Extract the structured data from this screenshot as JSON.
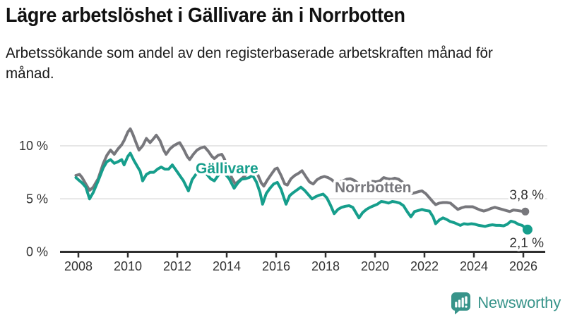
{
  "header": {
    "title": "Lägre arbetslöshet i Gällivare än i Norrbotten",
    "subtitle": "Arbetssökande som andel av den registerbaserade arbetskraften månad för månad."
  },
  "footer": {
    "brand": "Newsworthy",
    "logo_icon": "bar-chart-speech-bubble-icon",
    "brand_color": "#38948a"
  },
  "colors": {
    "gallivare": "#169e8c",
    "norrbotten": "#77777c",
    "gridline": "#dedede",
    "axis": "#2f2f2f",
    "tick_label": "#333333",
    "end_label": "#333333"
  },
  "chart_data": {
    "type": "line",
    "title": "Lägre arbetslöshet i Gällivare än i Norrbotten",
    "xlabel": "",
    "ylabel": "",
    "grid": "horizontal",
    "legend_position": "inline-labels",
    "xlim": [
      2007.75,
      2026.6
    ],
    "ylim": [
      0,
      12.2
    ],
    "x_axis": {
      "ticks": [
        2008,
        2010,
        2012,
        2014,
        2016,
        2018,
        2020,
        2022,
        2024,
        2026
      ]
    },
    "y_axis": {
      "ticks": [
        {
          "value": 0,
          "label": "0 %"
        },
        {
          "value": 5,
          "label": "5 %"
        },
        {
          "value": 10,
          "label": "10 %"
        }
      ]
    },
    "series": [
      {
        "name": "Norrbotten",
        "color": "#77777c",
        "end_label": "3,8 %",
        "end_value": 3.8,
        "points": [
          [
            2007.9,
            7.2
          ],
          [
            2008.05,
            7.3
          ],
          [
            2008.15,
            7.0
          ],
          [
            2008.3,
            6.4
          ],
          [
            2008.45,
            5.8
          ],
          [
            2008.6,
            6.1
          ],
          [
            2008.8,
            6.9
          ],
          [
            2009.0,
            8.3
          ],
          [
            2009.15,
            9.1
          ],
          [
            2009.3,
            9.6
          ],
          [
            2009.45,
            9.2
          ],
          [
            2009.6,
            9.7
          ],
          [
            2009.75,
            10.1
          ],
          [
            2009.85,
            10.5
          ],
          [
            2010.0,
            11.3
          ],
          [
            2010.1,
            11.6
          ],
          [
            2010.2,
            11.1
          ],
          [
            2010.35,
            10.2
          ],
          [
            2010.45,
            9.6
          ],
          [
            2010.6,
            10.0
          ],
          [
            2010.75,
            10.7
          ],
          [
            2010.9,
            10.3
          ],
          [
            2011.05,
            10.7
          ],
          [
            2011.15,
            11.0
          ],
          [
            2011.3,
            10.5
          ],
          [
            2011.45,
            9.6
          ],
          [
            2011.55,
            9.2
          ],
          [
            2011.7,
            9.7
          ],
          [
            2011.85,
            10.0
          ],
          [
            2012.0,
            10.2
          ],
          [
            2012.1,
            10.3
          ],
          [
            2012.25,
            9.7
          ],
          [
            2012.4,
            9.0
          ],
          [
            2012.5,
            8.7
          ],
          [
            2012.65,
            9.2
          ],
          [
            2012.8,
            9.6
          ],
          [
            2012.95,
            9.8
          ],
          [
            2013.1,
            9.9
          ],
          [
            2013.25,
            9.5
          ],
          [
            2013.4,
            9.0
          ],
          [
            2013.5,
            8.8
          ],
          [
            2013.65,
            9.1
          ],
          [
            2013.8,
            9.2
          ],
          [
            2013.9,
            8.8
          ],
          [
            2014.05,
            7.9
          ],
          [
            2014.2,
            7.0
          ],
          [
            2014.35,
            6.4
          ],
          [
            2014.5,
            6.7
          ],
          [
            2014.65,
            7.0
          ],
          [
            2014.8,
            7.3
          ],
          [
            2014.95,
            7.6
          ],
          [
            2015.1,
            7.75
          ],
          [
            2015.25,
            7.3
          ],
          [
            2015.4,
            6.5
          ],
          [
            2015.5,
            6.2
          ],
          [
            2015.65,
            6.8
          ],
          [
            2015.8,
            7.3
          ],
          [
            2015.95,
            7.8
          ],
          [
            2016.05,
            7.9
          ],
          [
            2016.2,
            7.2
          ],
          [
            2016.35,
            6.4
          ],
          [
            2016.45,
            6.3
          ],
          [
            2016.6,
            6.9
          ],
          [
            2016.75,
            7.2
          ],
          [
            2016.9,
            7.4
          ],
          [
            2017.05,
            7.65
          ],
          [
            2017.2,
            7.1
          ],
          [
            2017.35,
            6.6
          ],
          [
            2017.5,
            6.4
          ],
          [
            2017.65,
            6.8
          ],
          [
            2017.8,
            7.0
          ],
          [
            2017.95,
            7.1
          ],
          [
            2018.1,
            7.0
          ],
          [
            2018.25,
            6.8
          ],
          [
            2018.4,
            6.5
          ],
          [
            2018.55,
            6.6
          ],
          [
            2018.7,
            6.7
          ],
          [
            2018.85,
            6.85
          ],
          [
            2019.0,
            6.9
          ],
          [
            2019.15,
            6.75
          ],
          [
            2019.3,
            6.5
          ],
          [
            2019.45,
            6.35
          ],
          [
            2019.6,
            6.5
          ],
          [
            2019.75,
            6.6
          ],
          [
            2019.9,
            6.65
          ],
          [
            2020.05,
            6.6
          ],
          [
            2020.2,
            6.7
          ],
          [
            2020.35,
            7.0
          ],
          [
            2020.5,
            6.9
          ],
          [
            2020.65,
            6.85
          ],
          [
            2020.8,
            6.95
          ],
          [
            2020.95,
            6.85
          ],
          [
            2021.1,
            6.6
          ],
          [
            2021.25,
            5.9
          ],
          [
            2021.35,
            5.6
          ],
          [
            2021.5,
            5.5
          ],
          [
            2021.65,
            5.6
          ],
          [
            2021.8,
            5.7
          ],
          [
            2021.9,
            5.75
          ],
          [
            2022.05,
            5.5
          ],
          [
            2022.2,
            5.1
          ],
          [
            2022.35,
            4.7
          ],
          [
            2022.45,
            4.45
          ],
          [
            2022.6,
            4.6
          ],
          [
            2022.75,
            4.65
          ],
          [
            2022.9,
            4.65
          ],
          [
            2023.05,
            4.6
          ],
          [
            2023.2,
            4.3
          ],
          [
            2023.35,
            4.0
          ],
          [
            2023.5,
            4.15
          ],
          [
            2023.65,
            4.25
          ],
          [
            2023.8,
            4.25
          ],
          [
            2023.95,
            4.25
          ],
          [
            2024.1,
            4.1
          ],
          [
            2024.25,
            3.95
          ],
          [
            2024.4,
            3.85
          ],
          [
            2024.55,
            3.95
          ],
          [
            2024.7,
            4.1
          ],
          [
            2024.85,
            4.2
          ],
          [
            2025.0,
            4.1
          ],
          [
            2025.15,
            4.0
          ],
          [
            2025.3,
            3.9
          ],
          [
            2025.45,
            3.8
          ],
          [
            2025.6,
            3.95
          ],
          [
            2025.75,
            3.9
          ],
          [
            2025.9,
            3.85
          ],
          [
            2026.08,
            3.8
          ]
        ]
      },
      {
        "name": "Gällivare",
        "color": "#169e8c",
        "end_label": "2,1 %",
        "end_value": 2.1,
        "points": [
          [
            2007.9,
            7.0
          ],
          [
            2008.05,
            6.7
          ],
          [
            2008.15,
            6.5
          ],
          [
            2008.3,
            6.1
          ],
          [
            2008.45,
            5.0
          ],
          [
            2008.6,
            5.6
          ],
          [
            2008.8,
            6.7
          ],
          [
            2009.0,
            7.9
          ],
          [
            2009.15,
            8.5
          ],
          [
            2009.3,
            8.7
          ],
          [
            2009.45,
            8.35
          ],
          [
            2009.6,
            8.5
          ],
          [
            2009.75,
            8.7
          ],
          [
            2009.85,
            8.2
          ],
          [
            2010.0,
            9.0
          ],
          [
            2010.1,
            9.3
          ],
          [
            2010.25,
            8.6
          ],
          [
            2010.4,
            8.0
          ],
          [
            2010.5,
            7.6
          ],
          [
            2010.6,
            6.7
          ],
          [
            2010.75,
            7.3
          ],
          [
            2010.9,
            7.5
          ],
          [
            2011.05,
            7.5
          ],
          [
            2011.2,
            7.8
          ],
          [
            2011.35,
            8.0
          ],
          [
            2011.5,
            7.8
          ],
          [
            2011.65,
            7.8
          ],
          [
            2011.8,
            8.2
          ],
          [
            2011.95,
            7.7
          ],
          [
            2012.1,
            7.2
          ],
          [
            2012.25,
            6.7
          ],
          [
            2012.45,
            5.75
          ],
          [
            2012.6,
            6.8
          ],
          [
            2012.75,
            7.3
          ],
          [
            2012.9,
            7.6
          ],
          [
            2013.05,
            7.9
          ],
          [
            2013.2,
            7.3
          ],
          [
            2013.35,
            6.9
          ],
          [
            2013.5,
            6.7
          ],
          [
            2013.65,
            7.2
          ],
          [
            2013.8,
            7.5
          ],
          [
            2013.95,
            7.3
          ],
          [
            2014.1,
            6.9
          ],
          [
            2014.3,
            6.0
          ],
          [
            2014.45,
            6.5
          ],
          [
            2014.6,
            6.85
          ],
          [
            2014.75,
            6.9
          ],
          [
            2014.9,
            7.0
          ],
          [
            2015.05,
            7.2
          ],
          [
            2015.2,
            6.6
          ],
          [
            2015.35,
            5.6
          ],
          [
            2015.45,
            4.5
          ],
          [
            2015.6,
            5.5
          ],
          [
            2015.75,
            6.0
          ],
          [
            2015.9,
            6.4
          ],
          [
            2016.05,
            6.55
          ],
          [
            2016.2,
            5.9
          ],
          [
            2016.4,
            4.5
          ],
          [
            2016.55,
            5.3
          ],
          [
            2016.7,
            5.6
          ],
          [
            2016.85,
            5.85
          ],
          [
            2017.0,
            6.1
          ],
          [
            2017.15,
            5.8
          ],
          [
            2017.3,
            5.4
          ],
          [
            2017.45,
            5.0
          ],
          [
            2017.6,
            5.2
          ],
          [
            2017.75,
            5.35
          ],
          [
            2017.9,
            5.45
          ],
          [
            2018.05,
            5.1
          ],
          [
            2018.2,
            4.4
          ],
          [
            2018.35,
            3.6
          ],
          [
            2018.5,
            4.0
          ],
          [
            2018.65,
            4.2
          ],
          [
            2018.8,
            4.3
          ],
          [
            2018.95,
            4.35
          ],
          [
            2019.1,
            4.2
          ],
          [
            2019.25,
            3.6
          ],
          [
            2019.35,
            3.2
          ],
          [
            2019.5,
            3.7
          ],
          [
            2019.65,
            4.0
          ],
          [
            2019.8,
            4.2
          ],
          [
            2019.95,
            4.35
          ],
          [
            2020.1,
            4.5
          ],
          [
            2020.25,
            4.75
          ],
          [
            2020.4,
            4.7
          ],
          [
            2020.55,
            4.6
          ],
          [
            2020.7,
            4.75
          ],
          [
            2020.85,
            4.7
          ],
          [
            2021.0,
            4.6
          ],
          [
            2021.15,
            4.35
          ],
          [
            2021.3,
            3.8
          ],
          [
            2021.45,
            3.3
          ],
          [
            2021.6,
            3.8
          ],
          [
            2021.75,
            3.9
          ],
          [
            2021.9,
            4.0
          ],
          [
            2022.05,
            3.9
          ],
          [
            2022.2,
            3.85
          ],
          [
            2022.35,
            3.3
          ],
          [
            2022.45,
            2.65
          ],
          [
            2022.6,
            3.0
          ],
          [
            2022.75,
            3.2
          ],
          [
            2022.9,
            3.05
          ],
          [
            2023.05,
            2.85
          ],
          [
            2023.2,
            2.75
          ],
          [
            2023.45,
            2.5
          ],
          [
            2023.6,
            2.65
          ],
          [
            2023.75,
            2.6
          ],
          [
            2023.9,
            2.65
          ],
          [
            2024.05,
            2.6
          ],
          [
            2024.2,
            2.5
          ],
          [
            2024.45,
            2.4
          ],
          [
            2024.6,
            2.5
          ],
          [
            2024.75,
            2.55
          ],
          [
            2024.9,
            2.5
          ],
          [
            2025.05,
            2.5
          ],
          [
            2025.2,
            2.45
          ],
          [
            2025.35,
            2.6
          ],
          [
            2025.5,
            2.9
          ],
          [
            2025.65,
            2.8
          ],
          [
            2025.8,
            2.6
          ],
          [
            2025.95,
            2.5
          ],
          [
            2026.17,
            2.1
          ]
        ]
      }
    ]
  }
}
